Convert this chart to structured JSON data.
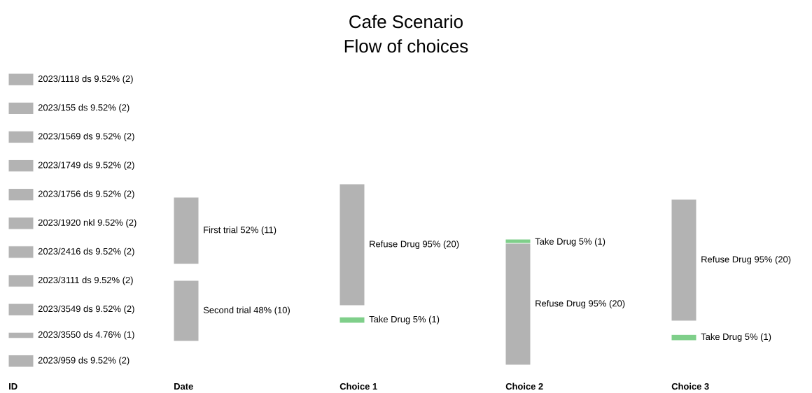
{
  "chart_data": {
    "type": "other",
    "title": "Cafe Scenario",
    "subtitle": "Flow of choices",
    "categories": [
      "2023/1118 ds 9.52%",
      "2023/155 ds 9.52%",
      "2023/1569 ds 9.52%",
      "2023/1749 ds 9.52%",
      "2023/1756 ds 9.52%",
      "2023/1920 nkl 9.52%",
      "2023/2416 ds 9.52%",
      "2023/3111 ds 9.52%",
      "2023/3549 ds 9.52%",
      "2023/3550 ds 4.76%",
      "2023/959 ds 9.52%",
      "First trial 52%",
      "Second trial 48%",
      "Refuse Drug 95%",
      "Take Drug 5%",
      "Take Drug 5%",
      "Refuse Drug 95%",
      "Refuse Drug 95%",
      "Take Drug 5%"
    ],
    "series": [
      {
        "name": "ID",
        "values": [
          2,
          2,
          2,
          2,
          2,
          2,
          2,
          2,
          2,
          1,
          2,
          null,
          null,
          null,
          null,
          null,
          null,
          null,
          null
        ],
        "value_labels": [
          "(2)",
          "(2)",
          "(2)",
          "(2)",
          "(2)",
          "(2)",
          "(2)",
          "(2)",
          "(2)",
          "(1)",
          "(2)",
          null,
          null,
          null,
          null,
          null,
          null,
          null,
          null
        ],
        "colors": [
          "#b3b3b3",
          "#b3b3b3",
          "#b3b3b3",
          "#b3b3b3",
          "#b3b3b3",
          "#b3b3b3",
          "#b3b3b3",
          "#b3b3b3",
          "#b3b3b3",
          "#b3b3b3",
          "#b3b3b3",
          null,
          null,
          null,
          null,
          null,
          null,
          null,
          null
        ]
      },
      {
        "name": "Date",
        "values": [
          null,
          null,
          null,
          null,
          null,
          null,
          null,
          null,
          null,
          null,
          null,
          11,
          10,
          null,
          null,
          null,
          null,
          null,
          null
        ],
        "value_labels": [
          null,
          null,
          null,
          null,
          null,
          null,
          null,
          null,
          null,
          null,
          null,
          "(11)",
          "(10)",
          null,
          null,
          null,
          null,
          null,
          null
        ],
        "colors": [
          null,
          null,
          null,
          null,
          null,
          null,
          null,
          null,
          null,
          null,
          null,
          "#b3b3b3",
          "#b3b3b3",
          null,
          null,
          null,
          null,
          null,
          null
        ]
      },
      {
        "name": "Choice 1",
        "values": [
          null,
          null,
          null,
          null,
          null,
          null,
          null,
          null,
          null,
          null,
          null,
          null,
          null,
          20,
          1,
          null,
          null,
          null,
          null
        ],
        "value_labels": [
          null,
          null,
          null,
          null,
          null,
          null,
          null,
          null,
          null,
          null,
          null,
          null,
          null,
          "(20)",
          "(1)",
          null,
          null,
          null,
          null
        ],
        "colors": [
          null,
          null,
          null,
          null,
          null,
          null,
          null,
          null,
          null,
          null,
          null,
          null,
          null,
          "#b3b3b3",
          "#7fcf8a",
          null,
          null,
          null,
          null
        ]
      },
      {
        "name": "Choice 2",
        "values": [
          null,
          null,
          null,
          null,
          null,
          null,
          null,
          null,
          null,
          null,
          null,
          null,
          null,
          null,
          null,
          1,
          20,
          null,
          null
        ],
        "value_labels": [
          null,
          null,
          null,
          null,
          null,
          null,
          null,
          null,
          null,
          null,
          null,
          null,
          null,
          null,
          null,
          "(1)",
          "(20)",
          null,
          null
        ],
        "colors": [
          null,
          null,
          null,
          null,
          null,
          null,
          null,
          null,
          null,
          null,
          null,
          null,
          null,
          null,
          null,
          "#7fcf8a",
          "#b3b3b3",
          null,
          null
        ]
      },
      {
        "name": "Choice 3",
        "values": [
          null,
          null,
          null,
          null,
          null,
          null,
          null,
          null,
          null,
          null,
          null,
          null,
          null,
          null,
          null,
          null,
          null,
          20,
          1
        ],
        "value_labels": [
          null,
          null,
          null,
          null,
          null,
          null,
          null,
          null,
          null,
          null,
          null,
          null,
          null,
          null,
          null,
          null,
          null,
          "(20)",
          "(1)"
        ],
        "colors": [
          null,
          null,
          null,
          null,
          null,
          null,
          null,
          null,
          null,
          null,
          null,
          null,
          null,
          null,
          null,
          null,
          null,
          "#b3b3b3",
          "#7fcf8a"
        ]
      }
    ]
  }
}
